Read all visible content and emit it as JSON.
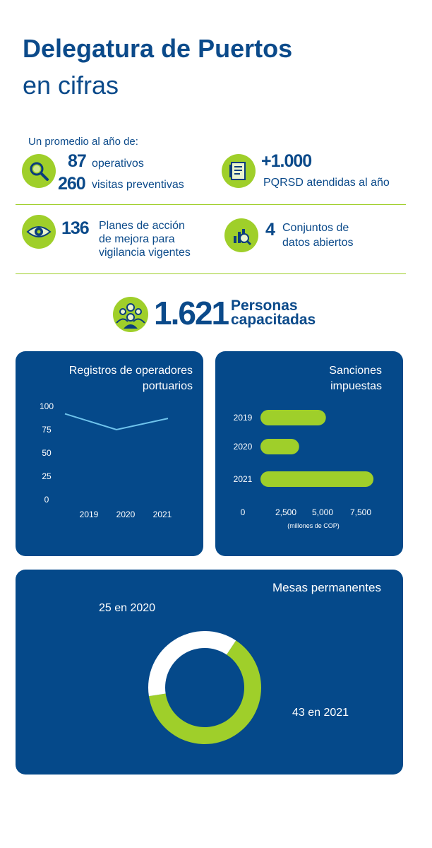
{
  "header": {
    "title_bold": "Delegatura de Puertos",
    "title_light": "en cifras"
  },
  "intro": "Un promedio al año de:",
  "stats": {
    "operativos_value": "87",
    "operativos_label": "operativos",
    "visitas_value": "260",
    "visitas_label": "visitas preventivas",
    "pqrsd_value": "+1.000",
    "pqrsd_label": "PQRSD atendidas al año",
    "planes_value": "136",
    "planes_line1": "Planes de acción",
    "planes_line2": "de mejora para",
    "planes_line3": "vigilancia vigentes",
    "datos_value": "4",
    "datos_line1": "Conjuntos de",
    "datos_line2": "datos abiertos",
    "personas_value": "1.621",
    "personas_line1": "Personas",
    "personas_line2": "capacitadas"
  },
  "icons": {
    "search": "magnifier-icon",
    "document": "document-icon",
    "eye": "eye-icon",
    "data": "data-analysis-icon",
    "people": "people-group-icon"
  },
  "colors": {
    "navy": "#05498a",
    "green": "#9fcf2a",
    "title": "#0b4a8a"
  },
  "chart_data": [
    {
      "type": "line",
      "title_line1": "Registros de operadores",
      "title_line2": "portuarios",
      "x": [
        "2019",
        "2020",
        "2021"
      ],
      "series": [
        {
          "values": [
            92,
            75,
            87
          ]
        }
      ],
      "ylim": [
        0,
        100
      ],
      "yticks": [
        "100",
        "75",
        "50",
        "25",
        "0"
      ]
    },
    {
      "type": "bar",
      "orientation": "horizontal",
      "title_line1": "Sanciones",
      "title_line2": "impuestas",
      "categories": [
        "2019",
        "2020",
        "2021"
      ],
      "values": [
        4400,
        2600,
        7600
      ],
      "xlim": [
        0,
        7500
      ],
      "xticks": [
        "0",
        "2,500",
        "5,000",
        "7,500"
      ],
      "xlabel": "(millones de COP)"
    },
    {
      "type": "pie",
      "donut": true,
      "title": "Mesas permanentes",
      "slices": [
        {
          "label": "25 en 2020",
          "value": 25,
          "color": "#ffffff"
        },
        {
          "label": "43 en 2021",
          "value": 43,
          "color": "#9fcf2a"
        }
      ]
    }
  ]
}
